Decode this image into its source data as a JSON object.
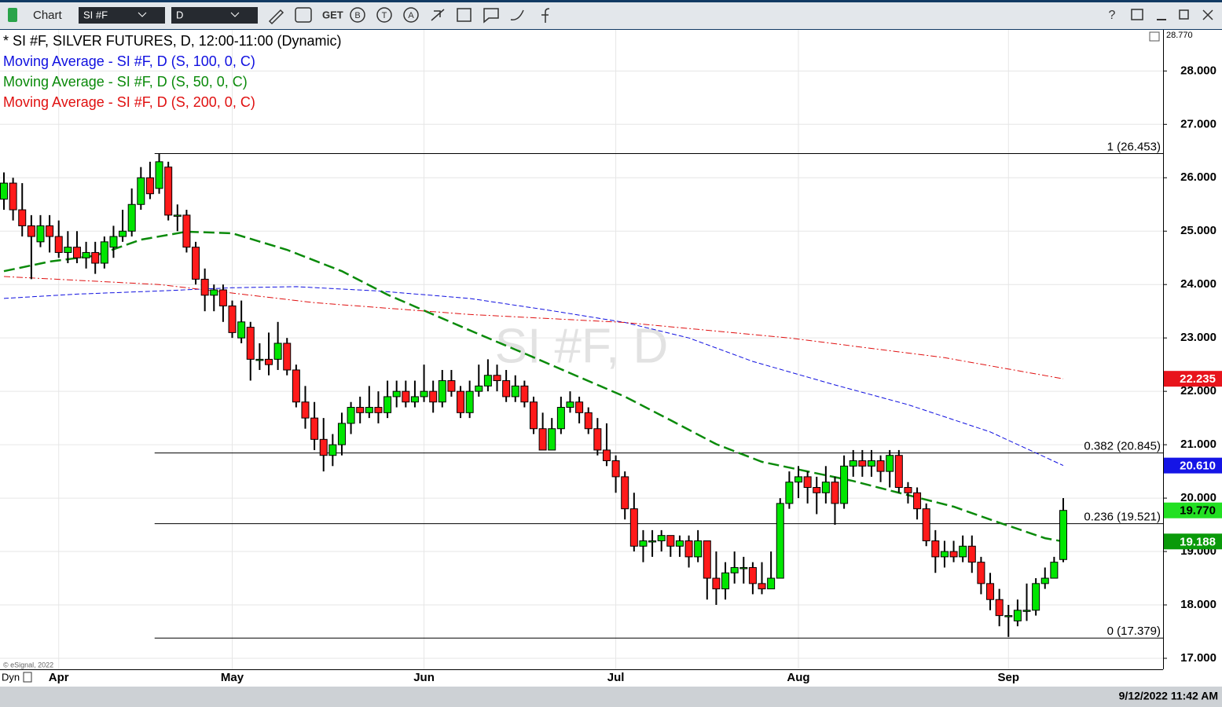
{
  "toolbar": {
    "window": "Chart",
    "symbol": "SI #F",
    "interval": "D",
    "get": "GET",
    "icon_letters": [
      "B",
      "T",
      "A"
    ]
  },
  "chart_data": {
    "type": "candlestick",
    "title": "* SI #F, SILVER FUTURES, D, 12:00-11:00 (Dynamic)",
    "watermark": "SI #F, D",
    "categories": [
      null,
      null,
      null,
      null,
      null,
      null,
      "Apr",
      null,
      null,
      null,
      null,
      null,
      null,
      null,
      null,
      null,
      null,
      null,
      null,
      null,
      null,
      null,
      null,
      null,
      null,
      "May",
      null,
      null,
      null,
      null,
      null,
      null,
      null,
      null,
      null,
      null,
      null,
      null,
      null,
      null,
      null,
      null,
      null,
      null,
      null,
      null,
      "Jun",
      null,
      null,
      null,
      null,
      null,
      null,
      null,
      null,
      null,
      null,
      null,
      null,
      null,
      null,
      null,
      null,
      null,
      null,
      null,
      null,
      "Jul",
      null,
      null,
      null,
      null,
      null,
      null,
      null,
      null,
      null,
      null,
      null,
      null,
      null,
      null,
      null,
      null,
      null,
      null,
      null,
      "Aug",
      null,
      null,
      null,
      null,
      null,
      null,
      null,
      null,
      null,
      null,
      null,
      null,
      null,
      null,
      null,
      null,
      null,
      null,
      null,
      null,
      null,
      null,
      "Sep",
      null,
      null,
      null,
      null,
      null,
      null
    ],
    "ohlc": [
      [
        25.6,
        26.1,
        25.4,
        25.9
      ],
      [
        25.9,
        26.0,
        25.2,
        25.4
      ],
      [
        25.4,
        25.9,
        24.9,
        25.1
      ],
      [
        25.1,
        25.3,
        24.1,
        24.9
      ],
      [
        24.8,
        25.3,
        24.7,
        25.1
      ],
      [
        25.1,
        25.3,
        24.6,
        24.9
      ],
      [
        24.9,
        25.2,
        24.5,
        24.6
      ],
      [
        24.6,
        25.0,
        24.4,
        24.7
      ],
      [
        24.7,
        25.0,
        24.4,
        24.5
      ],
      [
        24.5,
        24.8,
        24.3,
        24.6
      ],
      [
        24.6,
        24.8,
        24.2,
        24.4
      ],
      [
        24.4,
        24.9,
        24.3,
        24.8
      ],
      [
        24.7,
        25.1,
        24.5,
        24.9
      ],
      [
        24.9,
        25.4,
        24.8,
        25.0
      ],
      [
        25.0,
        25.8,
        24.9,
        25.5
      ],
      [
        25.5,
        26.2,
        25.4,
        26.0
      ],
      [
        26.0,
        26.3,
        25.6,
        25.7
      ],
      [
        25.8,
        26.45,
        25.7,
        26.3
      ],
      [
        26.2,
        26.3,
        25.2,
        25.3
      ],
      [
        25.3,
        25.5,
        25.0,
        25.3
      ],
      [
        25.3,
        25.4,
        24.6,
        24.7
      ],
      [
        24.7,
        24.8,
        24.0,
        24.1
      ],
      [
        24.1,
        24.3,
        23.5,
        23.8
      ],
      [
        23.8,
        24.0,
        23.5,
        23.9
      ],
      [
        23.9,
        24.0,
        23.3,
        23.6
      ],
      [
        23.6,
        23.7,
        23.0,
        23.1
      ],
      [
        23.0,
        23.7,
        22.9,
        23.3
      ],
      [
        23.2,
        23.3,
        22.2,
        22.6
      ],
      [
        22.6,
        22.9,
        22.4,
        22.6
      ],
      [
        22.6,
        23.1,
        22.3,
        22.5
      ],
      [
        22.6,
        23.3,
        22.4,
        22.9
      ],
      [
        22.9,
        23.0,
        22.3,
        22.4
      ],
      [
        22.4,
        22.5,
        21.7,
        21.8
      ],
      [
        21.8,
        22.1,
        21.3,
        21.5
      ],
      [
        21.5,
        21.8,
        20.9,
        21.1
      ],
      [
        21.1,
        21.5,
        20.5,
        20.8
      ],
      [
        20.8,
        21.2,
        20.6,
        21.0
      ],
      [
        21.0,
        21.6,
        20.8,
        21.4
      ],
      [
        21.4,
        21.8,
        21.2,
        21.7
      ],
      [
        21.7,
        21.9,
        21.4,
        21.6
      ],
      [
        21.6,
        22.1,
        21.5,
        21.7
      ],
      [
        21.7,
        22.0,
        21.4,
        21.6
      ],
      [
        21.6,
        22.2,
        21.5,
        21.9
      ],
      [
        21.9,
        22.2,
        21.7,
        22.0
      ],
      [
        22.0,
        22.2,
        21.7,
        21.8
      ],
      [
        21.8,
        22.2,
        21.7,
        21.9
      ],
      [
        21.9,
        22.5,
        21.8,
        22.0
      ],
      [
        22.0,
        22.2,
        21.6,
        21.8
      ],
      [
        21.8,
        22.4,
        21.7,
        22.2
      ],
      [
        22.2,
        22.4,
        21.9,
        22.0
      ],
      [
        22.0,
        22.1,
        21.5,
        21.6
      ],
      [
        21.6,
        22.2,
        21.5,
        22.0
      ],
      [
        22.0,
        22.5,
        21.9,
        22.1
      ],
      [
        22.1,
        22.6,
        22.0,
        22.3
      ],
      [
        22.3,
        22.5,
        22.0,
        22.2
      ],
      [
        22.2,
        22.4,
        21.8,
        21.9
      ],
      [
        21.9,
        22.3,
        21.8,
        22.1
      ],
      [
        22.1,
        22.2,
        21.7,
        21.8
      ],
      [
        21.8,
        21.9,
        21.2,
        21.3
      ],
      [
        21.3,
        21.6,
        20.9,
        20.9
      ],
      [
        20.9,
        21.5,
        20.9,
        21.3
      ],
      [
        21.3,
        21.9,
        21.2,
        21.7
      ],
      [
        21.7,
        22.0,
        21.6,
        21.8
      ],
      [
        21.8,
        21.9,
        21.4,
        21.6
      ],
      [
        21.6,
        21.7,
        21.2,
        21.3
      ],
      [
        21.3,
        21.5,
        20.8,
        20.9
      ],
      [
        20.9,
        21.4,
        20.6,
        20.7
      ],
      [
        20.7,
        20.8,
        20.1,
        20.4
      ],
      [
        20.4,
        20.5,
        19.6,
        19.8
      ],
      [
        19.8,
        20.1,
        19.0,
        19.1
      ],
      [
        19.1,
        19.4,
        18.8,
        19.2
      ],
      [
        19.2,
        19.4,
        18.9,
        19.2
      ],
      [
        19.2,
        19.4,
        19.0,
        19.3
      ],
      [
        19.3,
        19.3,
        18.9,
        19.1
      ],
      [
        19.1,
        19.3,
        18.9,
        19.2
      ],
      [
        19.2,
        19.3,
        18.7,
        18.9
      ],
      [
        18.9,
        19.4,
        18.8,
        19.2
      ],
      [
        19.2,
        19.2,
        18.1,
        18.5
      ],
      [
        18.5,
        19.0,
        18.0,
        18.3
      ],
      [
        18.3,
        18.8,
        18.1,
        18.6
      ],
      [
        18.6,
        19.0,
        18.4,
        18.7
      ],
      [
        18.7,
        18.9,
        18.4,
        18.7
      ],
      [
        18.7,
        18.8,
        18.2,
        18.4
      ],
      [
        18.4,
        18.8,
        18.2,
        18.3
      ],
      [
        18.3,
        19.0,
        18.3,
        18.5
      ],
      [
        18.5,
        20.0,
        18.5,
        19.9
      ],
      [
        19.9,
        20.5,
        19.8,
        20.3
      ],
      [
        20.3,
        20.6,
        20.0,
        20.4
      ],
      [
        20.4,
        20.5,
        19.9,
        20.2
      ],
      [
        20.2,
        20.4,
        19.7,
        20.1
      ],
      [
        20.1,
        20.6,
        19.9,
        20.3
      ],
      [
        20.3,
        20.4,
        19.5,
        19.9
      ],
      [
        19.9,
        20.8,
        19.8,
        20.6
      ],
      [
        20.6,
        20.9,
        20.4,
        20.7
      ],
      [
        20.7,
        20.9,
        20.4,
        20.6
      ],
      [
        20.6,
        20.9,
        20.4,
        20.7
      ],
      [
        20.7,
        20.8,
        20.3,
        20.5
      ],
      [
        20.5,
        20.9,
        20.2,
        20.8
      ],
      [
        20.8,
        20.9,
        20.1,
        20.2
      ],
      [
        20.2,
        20.3,
        19.9,
        20.1
      ],
      [
        20.1,
        20.2,
        19.6,
        19.8
      ],
      [
        19.8,
        19.9,
        19.1,
        19.2
      ],
      [
        19.2,
        19.4,
        18.6,
        18.9
      ],
      [
        18.9,
        19.2,
        18.7,
        19.0
      ],
      [
        19.0,
        19.2,
        18.8,
        18.9
      ],
      [
        18.9,
        19.3,
        18.8,
        19.1
      ],
      [
        19.1,
        19.3,
        18.6,
        18.8
      ],
      [
        18.8,
        18.9,
        18.2,
        18.4
      ],
      [
        18.4,
        18.6,
        17.9,
        18.1
      ],
      [
        18.1,
        18.3,
        17.6,
        17.8
      ],
      [
        17.8,
        18.0,
        17.4,
        17.8
      ],
      [
        17.7,
        18.1,
        17.6,
        17.9
      ],
      [
        17.9,
        18.4,
        17.7,
        17.9
      ],
      [
        17.9,
        18.5,
        17.8,
        18.4
      ],
      [
        18.4,
        18.7,
        18.3,
        18.5
      ],
      [
        18.5,
        18.9,
        18.5,
        18.8
      ],
      [
        18.85,
        20.0,
        18.8,
        19.77
      ]
    ],
    "up_color": "#00e600",
    "down_color": "#ff1a1a",
    "series": [
      {
        "name": "Moving Average - SI #F, D (S, 100, 0, C)",
        "color": "#1010e0",
        "dash": "6,3",
        "width": 1,
        "x": [
          0,
          8,
          17,
          25,
          32,
          41,
          51,
          60,
          68,
          75,
          82,
          91,
          99,
          108,
          116
        ],
        "values": [
          23.74,
          23.82,
          23.88,
          23.94,
          23.96,
          23.88,
          23.74,
          23.51,
          23.29,
          23.0,
          22.56,
          22.12,
          21.75,
          21.24,
          20.61
        ]
      },
      {
        "name": "Moving Average - SI #F, D (S, 50, 0, C)",
        "color": "#0a8a0a",
        "dash": "14,6",
        "width": 2.5,
        "x": [
          0,
          5,
          10,
          15,
          20,
          25,
          31,
          37,
          42,
          47,
          52,
          57,
          62,
          68,
          73,
          78,
          83,
          88,
          93,
          98,
          104,
          109,
          114,
          116
        ],
        "values": [
          24.25,
          24.43,
          24.54,
          24.84,
          24.99,
          24.96,
          24.65,
          24.25,
          23.81,
          23.44,
          23.07,
          22.71,
          22.34,
          21.9,
          21.46,
          21.01,
          20.68,
          20.5,
          20.32,
          20.1,
          19.84,
          19.54,
          19.25,
          19.188
        ]
      },
      {
        "name": "Moving Average - SI #F, D (S, 200, 0, C)",
        "color": "#e01010",
        "dash": "8,3,2,3",
        "width": 1,
        "x": [
          0,
          17,
          34,
          51,
          68,
          86,
          103,
          116
        ],
        "values": [
          24.15,
          24.0,
          23.66,
          23.44,
          23.29,
          23.0,
          22.63,
          22.235
        ]
      }
    ],
    "fib_levels": [
      {
        "value": 26.453,
        "label": "1 (26.453)"
      },
      {
        "value": 20.845,
        "label": "0.382 (20.845)"
      },
      {
        "value": 19.521,
        "label": "0.236 (19.521)"
      },
      {
        "value": 17.379,
        "label": "0 (17.379)"
      }
    ],
    "fib_start": 16.5,
    "price_flags": [
      {
        "value": 22.235,
        "label": "22.235",
        "color": "#e8141c",
        "text_color": "#ffffff"
      },
      {
        "value": 20.61,
        "label": "20.610",
        "color": "#1515e6",
        "text_color": "#ffffff"
      },
      {
        "value": 19.77,
        "label": "19.770",
        "color": "#22e022",
        "text_color": "#000000"
      },
      {
        "value": 19.188,
        "label": "19.188",
        "color": "#0a9a0a",
        "text_color": "#ffffff"
      }
    ],
    "ylim": [
      16.794,
      28.77
    ],
    "y_top": {
      "value": 28.77,
      "label": "28.770"
    },
    "yticks": [
      {
        "value": 17,
        "label": "17.000"
      },
      {
        "value": 18,
        "label": "18.000"
      },
      {
        "value": 19,
        "label": "19.000"
      },
      {
        "value": 20,
        "label": "20.000"
      },
      {
        "value": 21,
        "label": "21.000"
      },
      {
        "value": 22,
        "label": "22.000"
      },
      {
        "value": 23,
        "label": "23.000"
      },
      {
        "value": 24,
        "label": "24.000"
      },
      {
        "value": 25,
        "label": "25.000"
      },
      {
        "value": 26,
        "label": "26.000"
      },
      {
        "value": 27,
        "label": "27.000"
      },
      {
        "value": 28,
        "label": "28.000"
      }
    ],
    "grid": true
  },
  "footer": {
    "mode": "Dyn",
    "copyright": "© eSignal, 2022"
  },
  "status_bar": {
    "datetime": "9/12/2022 11:42 AM"
  }
}
